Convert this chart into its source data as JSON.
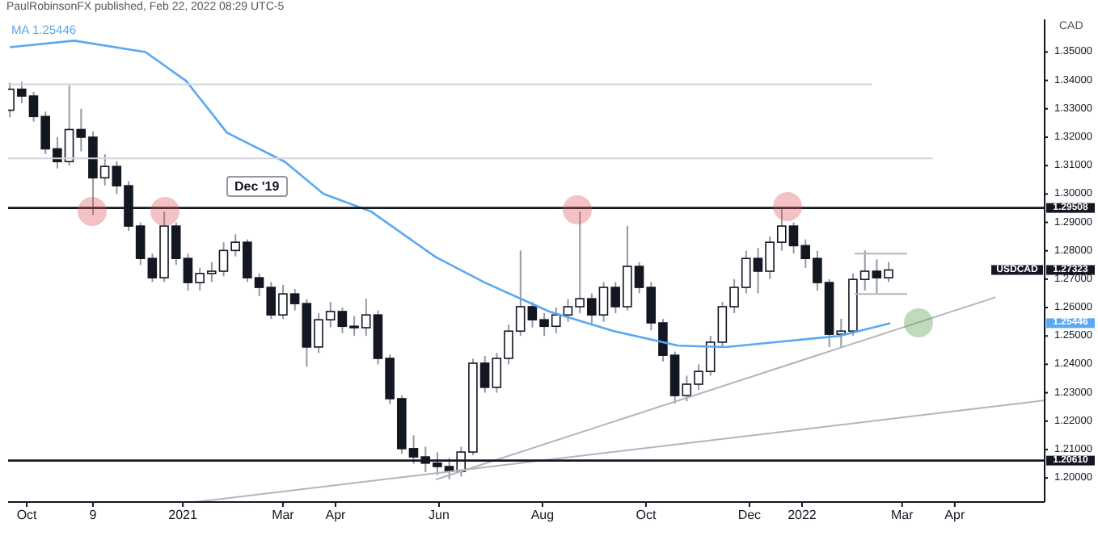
{
  "chart_data": {
    "type": "candlestick",
    "ylabel": "CAD",
    "color": "#131722",
    "legend": "top left",
    "annotations": [
      "PaulRobinsonFX published, Feb 22, 2022 08:29 UTC-5",
      "Dec '19",
      "1.25446",
      "USDCAD",
      "1.27323",
      "1.25446"
    ],
    "xlim": [
      "2020-09-20",
      "2022-05-24"
    ],
    "xticks": [
      {
        "value": "2020-10-01",
        "label": "Oct"
      },
      {
        "value": "2020-11-09",
        "label": "9"
      },
      {
        "value": "2021-01-01",
        "label": "2021"
      },
      {
        "value": "2021-03-01",
        "label": "Mar"
      },
      {
        "value": "2021-04-01",
        "label": "Apr"
      },
      {
        "value": "2021-06-01",
        "label": "Jun"
      },
      {
        "value": "2021-08-01",
        "label": "Aug"
      },
      {
        "value": "2021-10-01",
        "label": "Oct"
      },
      {
        "value": "2021-12-01",
        "label": "Dec"
      },
      {
        "value": "2022-01-01",
        "label": "2022"
      },
      {
        "value": "2022-03-01",
        "label": "Mar"
      },
      {
        "value": "2022-04-01",
        "label": "Apr"
      }
    ],
    "ylim": [
      1.1915,
      1.3615
    ],
    "yticks": [
      {
        "value": 1.2,
        "label": "1.20000"
      },
      {
        "value": 1.21,
        "label": "1.21000"
      },
      {
        "value": 1.22,
        "label": "1.22000"
      },
      {
        "value": 1.23,
        "label": "1.23000"
      },
      {
        "value": 1.24,
        "label": "1.24000"
      },
      {
        "value": 1.25,
        "label": "1.25000"
      },
      {
        "value": 1.26,
        "label": "1.26000"
      },
      {
        "value": 1.27,
        "label": "1.27000"
      },
      {
        "value": 1.28,
        "label": "1.28000"
      },
      {
        "value": 1.29,
        "label": "1.29000"
      },
      {
        "value": 1.3,
        "label": "1.30000"
      },
      {
        "value": 1.31,
        "label": "1.31000"
      },
      {
        "value": 1.32,
        "label": "1.32000"
      },
      {
        "value": 1.33,
        "label": "1.33000"
      },
      {
        "value": 1.34,
        "label": "1.34000"
      },
      {
        "value": 1.35,
        "label": "1.35000"
      }
    ],
    "x": [
      "2020-09-21",
      "2020-09-28",
      "2020-10-05",
      "2020-10-12",
      "2020-10-19",
      "2020-10-26",
      "2020-11-02",
      "2020-11-09",
      "2020-11-16",
      "2020-11-23",
      "2020-11-30",
      "2020-12-07",
      "2020-12-14",
      "2020-12-21",
      "2020-12-28",
      "2021-01-04",
      "2021-01-11",
      "2021-01-18",
      "2021-01-25",
      "2021-02-01",
      "2021-02-08",
      "2021-02-15",
      "2021-02-22",
      "2021-03-01",
      "2021-03-08",
      "2021-03-15",
      "2021-03-22",
      "2021-03-29",
      "2021-04-05",
      "2021-04-12",
      "2021-04-19",
      "2021-04-26",
      "2021-05-03",
      "2021-05-10",
      "2021-05-17",
      "2021-05-24",
      "2021-05-31",
      "2021-06-07",
      "2021-06-14",
      "2021-06-21",
      "2021-06-28",
      "2021-07-05",
      "2021-07-12",
      "2021-07-19",
      "2021-07-26",
      "2021-08-02",
      "2021-08-09",
      "2021-08-16",
      "2021-08-23",
      "2021-08-30",
      "2021-09-06",
      "2021-09-13",
      "2021-09-20",
      "2021-09-27",
      "2021-10-04",
      "2021-10-11",
      "2021-10-18",
      "2021-10-25",
      "2021-11-01",
      "2021-11-08",
      "2021-11-15",
      "2021-11-22",
      "2021-11-29",
      "2021-12-06",
      "2021-12-13",
      "2021-12-20",
      "2021-12-27",
      "2022-01-03",
      "2022-01-10",
      "2022-01-17",
      "2022-01-24",
      "2022-01-31",
      "2022-02-07",
      "2022-02-14",
      "2022-02-21"
    ],
    "ohlc": [
      [
        1.3295,
        1.3392,
        1.327,
        1.3369
      ],
      [
        1.3369,
        1.3395,
        1.332,
        1.3345
      ],
      [
        1.3345,
        1.336,
        1.3255,
        1.3273
      ],
      [
        1.3273,
        1.329,
        1.314,
        1.3159
      ],
      [
        1.3159,
        1.32,
        1.309,
        1.3114
      ],
      [
        1.3114,
        1.3381,
        1.31,
        1.3227
      ],
      [
        1.3227,
        1.33,
        1.315,
        1.32
      ],
      [
        1.32,
        1.322,
        1.2926,
        1.3057
      ],
      [
        1.3057,
        1.314,
        1.303,
        1.3097
      ],
      [
        1.3097,
        1.3115,
        1.3,
        1.3029
      ],
      [
        1.3029,
        1.3045,
        1.287,
        1.2887
      ],
      [
        1.2887,
        1.29,
        1.275,
        1.2773
      ],
      [
        1.2773,
        1.279,
        1.269,
        1.2705
      ],
      [
        1.2705,
        1.2938,
        1.269,
        1.2887
      ],
      [
        1.2887,
        1.29,
        1.275,
        1.2773
      ],
      [
        1.2773,
        1.279,
        1.266,
        1.2688
      ],
      [
        1.2688,
        1.274,
        1.266,
        1.272
      ],
      [
        1.272,
        1.276,
        1.269,
        1.2728
      ],
      [
        1.2728,
        1.283,
        1.271,
        1.2801
      ],
      [
        1.2801,
        1.2858,
        1.278,
        1.283
      ],
      [
        1.283,
        1.284,
        1.269,
        1.2705
      ],
      [
        1.2705,
        1.272,
        1.264,
        1.2671
      ],
      [
        1.2671,
        1.269,
        1.256,
        1.2574
      ],
      [
        1.2574,
        1.268,
        1.256,
        1.2648
      ],
      [
        1.2648,
        1.2665,
        1.259,
        1.2614
      ],
      [
        1.2614,
        1.263,
        1.2392,
        1.2461
      ],
      [
        1.2461,
        1.258,
        1.244,
        1.2557
      ],
      [
        1.2557,
        1.262,
        1.253,
        1.2586
      ],
      [
        1.2586,
        1.26,
        1.251,
        1.2534
      ],
      [
        1.2534,
        1.257,
        1.25,
        1.2529
      ],
      [
        1.2529,
        1.2631,
        1.25,
        1.2574
      ],
      [
        1.2574,
        1.259,
        1.24,
        1.2421
      ],
      [
        1.2421,
        1.2435,
        1.226,
        1.2279
      ],
      [
        1.2279,
        1.229,
        1.2085,
        1.2103
      ],
      [
        1.2103,
        1.215,
        1.205,
        1.2074
      ],
      [
        1.2074,
        1.211,
        1.202,
        1.2052
      ],
      [
        1.2052,
        1.209,
        1.201,
        1.204
      ],
      [
        1.204,
        1.207,
        1.1995,
        1.2023
      ],
      [
        1.2023,
        1.211,
        1.2005,
        1.2091
      ],
      [
        1.2091,
        1.242,
        1.208,
        1.2404
      ],
      [
        1.2404,
        1.243,
        1.23,
        1.2319
      ],
      [
        1.2319,
        1.244,
        1.23,
        1.2421
      ],
      [
        1.2421,
        1.254,
        1.24,
        1.2517
      ],
      [
        1.2517,
        1.2801,
        1.25,
        1.2603
      ],
      [
        1.2603,
        1.262,
        1.253,
        1.2557
      ],
      [
        1.2557,
        1.258,
        1.25,
        1.2534
      ],
      [
        1.2534,
        1.26,
        1.251,
        1.2574
      ],
      [
        1.2574,
        1.263,
        1.255,
        1.2603
      ],
      [
        1.2603,
        1.2938,
        1.258,
        1.2631
      ],
      [
        1.2631,
        1.265,
        1.254,
        1.2574
      ],
      [
        1.2574,
        1.269,
        1.255,
        1.2671
      ],
      [
        1.2671,
        1.269,
        1.258,
        1.2603
      ],
      [
        1.2603,
        1.2887,
        1.259,
        1.2745
      ],
      [
        1.2745,
        1.276,
        1.265,
        1.2671
      ],
      [
        1.2671,
        1.269,
        1.252,
        1.2546
      ],
      [
        1.2546,
        1.256,
        1.241,
        1.2432
      ],
      [
        1.2432,
        1.2445,
        1.2262,
        1.229
      ],
      [
        1.229,
        1.236,
        1.227,
        1.233
      ],
      [
        1.233,
        1.24,
        1.231,
        1.2375
      ],
      [
        1.2375,
        1.25,
        1.236,
        1.2478
      ],
      [
        1.2478,
        1.262,
        1.246,
        1.2603
      ],
      [
        1.2603,
        1.27,
        1.258,
        1.2671
      ],
      [
        1.2671,
        1.28,
        1.265,
        1.2773
      ],
      [
        1.2773,
        1.281,
        1.265,
        1.2728
      ],
      [
        1.2728,
        1.285,
        1.27,
        1.283
      ],
      [
        1.283,
        1.295,
        1.28,
        1.2887
      ],
      [
        1.2887,
        1.29,
        1.279,
        1.2818
      ],
      [
        1.2818,
        1.284,
        1.274,
        1.2773
      ],
      [
        1.2773,
        1.28,
        1.266,
        1.2688
      ],
      [
        1.2688,
        1.27,
        1.2461,
        1.2506
      ],
      [
        1.2506,
        1.256,
        1.2461,
        1.2517
      ],
      [
        1.2517,
        1.272,
        1.25,
        1.2699
      ],
      [
        1.2699,
        1.2801,
        1.266,
        1.2728
      ],
      [
        1.2728,
        1.277,
        1.265,
        1.2705
      ],
      [
        1.2705,
        1.276,
        1.269,
        1.27323
      ]
    ],
    "series": [
      {
        "name": "MA",
        "type": "line",
        "color": "#5aa8f2",
        "x": [
          "2020-09-21",
          "2020-10-29",
          "2020-12-10",
          "2021-01-03",
          "2021-01-27",
          "2021-03-02",
          "2021-03-25",
          "2021-04-22",
          "2021-05-30",
          "2021-06-28",
          "2021-08-05",
          "2021-09-12",
          "2021-10-20",
          "2021-11-17",
          "2021-12-16",
          "2022-01-23",
          "2022-02-22"
        ],
        "values": [
          1.3517,
          1.354,
          1.35,
          1.3398,
          1.3216,
          1.3114,
          1.3,
          1.2938,
          1.2778,
          1.2688,
          1.2586,
          1.2517,
          1.2466,
          1.2461,
          1.2478,
          1.25,
          1.2545
        ]
      },
      {
        "type": "line",
        "color": "#b2b5be",
        "x": [
          "2021-01-08",
          "2022-05-24"
        ],
        "values": [
          1.1915,
          1.2273
        ]
      },
      {
        "type": "line",
        "color": "#b2b5be",
        "x": [
          "2021-05-30",
          "2022-04-25"
        ],
        "values": [
          1.1994,
          1.2636
        ]
      },
      {
        "type": "line",
        "color": "#d1d4dc",
        "x": [
          "2020-09-20",
          "2022-02-11"
        ],
        "values": [
          1.3386,
          1.3386
        ]
      },
      {
        "type": "line",
        "color": "#d1d4dc",
        "x": [
          "2020-09-20",
          "2022-03-19"
        ],
        "values": [
          1.3125,
          1.3125
        ]
      },
      {
        "type": "line",
        "color": "#b2b5be",
        "x": [
          "2022-02-01",
          "2022-03-04"
        ],
        "values": [
          1.279,
          1.279
        ]
      },
      {
        "type": "line",
        "color": "#b2b5be",
        "x": [
          "2022-02-01",
          "2022-03-04"
        ],
        "values": [
          1.2648,
          1.2648
        ]
      }
    ],
    "ref_lines": [
      {
        "axis": "y",
        "value": 1.29508,
        "label": "1.29508",
        "color": "#131722"
      },
      {
        "axis": "y",
        "value": 1.2061,
        "label": "1.20610",
        "color": "#131722"
      }
    ]
  }
}
